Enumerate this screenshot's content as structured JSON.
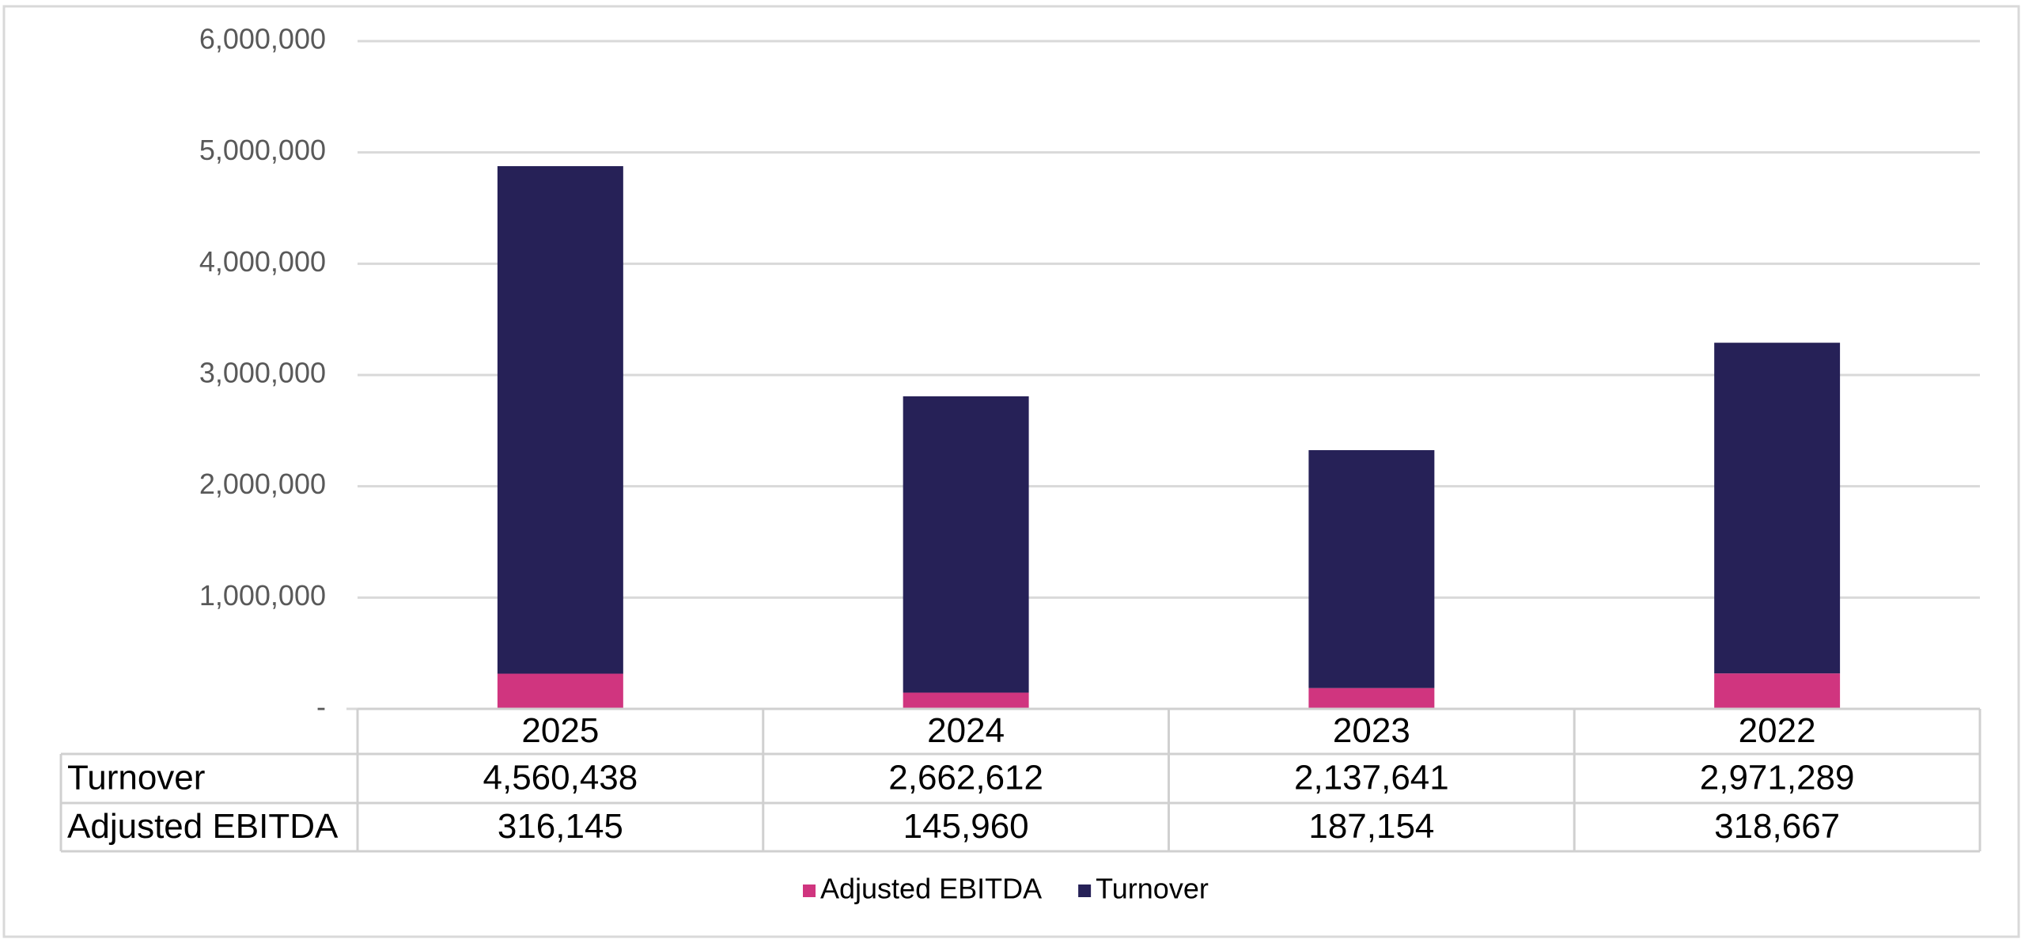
{
  "chart_data": {
    "type": "stacked_bar",
    "categories": [
      "2025",
      "2024",
      "2023",
      "2022"
    ],
    "series": [
      {
        "name": "Adjusted EBITDA",
        "color": "#d0357f",
        "values": [
          316145,
          145960,
          187154,
          318667
        ],
        "value_labels": [
          "316,145",
          "145,960",
          "187,154",
          "318,667"
        ]
      },
      {
        "name": "Turnover",
        "color": "#262157",
        "values": [
          4560438,
          2662612,
          2137641,
          2971289
        ],
        "value_labels": [
          "4,560,438",
          "2,662,612",
          "2,137,641",
          "2,971,289"
        ]
      }
    ],
    "ylim": [
      0,
      6000000
    ],
    "yticks": [
      {
        "value": 0,
        "label": "-"
      },
      {
        "value": 1000000,
        "label": "1,000,000"
      },
      {
        "value": 2000000,
        "label": "2,000,000"
      },
      {
        "value": 3000000,
        "label": "3,000,000"
      },
      {
        "value": 4000000,
        "label": "4,000,000"
      },
      {
        "value": 5000000,
        "label": "5,000,000"
      },
      {
        "value": 6000000,
        "label": "6,000,000"
      }
    ],
    "grid": true,
    "legend": "bottom"
  }
}
